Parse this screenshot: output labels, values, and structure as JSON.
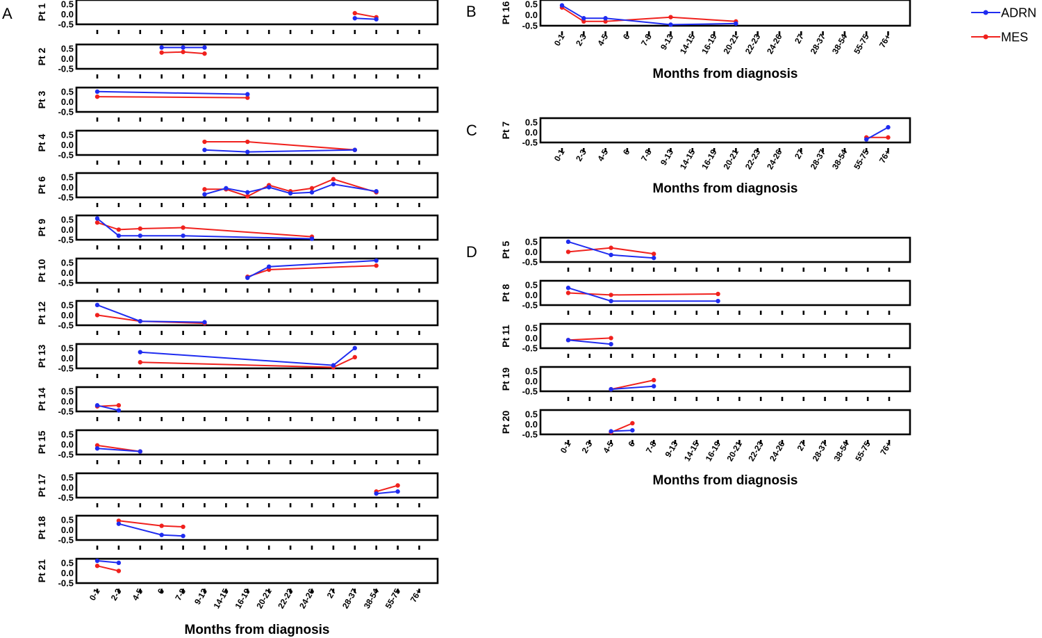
{
  "chart_data": {
    "type": "line",
    "x_categories": [
      "0-1",
      "2-3",
      "4-5",
      "6",
      "7-8",
      "9-13",
      "14-15",
      "16-19",
      "20-21",
      "22-23",
      "24-26",
      "27",
      "28-37",
      "38-54",
      "55-75",
      "76+"
    ],
    "y_ticks": [
      "0.5",
      "0.0",
      "-0.5"
    ],
    "ylim": [
      -0.5,
      0.7
    ],
    "xlabel": "Months from diagnosis",
    "legend": [
      {
        "key": "ADRN",
        "label": "ADRN",
        "color": "#1f2cf0"
      },
      {
        "key": "MES",
        "label": "MES",
        "color": "#f0211d"
      }
    ],
    "panels": [
      {
        "letter": "A",
        "xlabel": "Months from diagnosis",
        "subplots": [
          {
            "label": "Pt 1",
            "ADRN": [
              [
                12,
                -0.2
              ],
              [
                13,
                -0.25
              ]
            ],
            "MES": [
              [
                12,
                0.05
              ],
              [
                13,
                -0.15
              ]
            ]
          },
          {
            "label": "Pt 2",
            "ADRN": [
              [
                3,
                0.55
              ],
              [
                4,
                0.55
              ],
              [
                5,
                0.55
              ]
            ],
            "MES": [
              [
                3,
                0.3
              ],
              [
                4,
                0.33
              ],
              [
                5,
                0.25
              ]
            ]
          },
          {
            "label": "Pt 3",
            "ADRN": [
              [
                0,
                0.5
              ],
              [
                7,
                0.37
              ]
            ],
            "MES": [
              [
                0,
                0.25
              ],
              [
                7,
                0.2
              ]
            ]
          },
          {
            "label": "Pt 4",
            "ADRN": [
              [
                5,
                -0.25
              ],
              [
                7,
                -0.35
              ],
              [
                12,
                -0.25
              ]
            ],
            "MES": [
              [
                5,
                0.15
              ],
              [
                7,
                0.15
              ],
              [
                12,
                -0.25
              ]
            ]
          },
          {
            "label": "Pt 6",
            "ADRN": [
              [
                5,
                -0.35
              ],
              [
                6,
                -0.05
              ],
              [
                7,
                -0.25
              ],
              [
                8,
                0.0
              ],
              [
                9,
                -0.3
              ],
              [
                10,
                -0.25
              ],
              [
                11,
                0.15
              ],
              [
                13,
                -0.2
              ]
            ],
            "MES": [
              [
                5,
                -0.1
              ],
              [
                6,
                -0.1
              ],
              [
                7,
                -0.45
              ],
              [
                8,
                0.1
              ],
              [
                9,
                -0.2
              ],
              [
                10,
                -0.05
              ],
              [
                11,
                0.4
              ],
              [
                13,
                -0.25
              ]
            ]
          },
          {
            "label": "Pt 9",
            "ADRN": [
              [
                0,
                0.55
              ],
              [
                1,
                -0.3
              ],
              [
                2,
                -0.3
              ],
              [
                4,
                -0.3
              ],
              [
                10,
                -0.45
              ]
            ],
            "MES": [
              [
                0,
                0.35
              ],
              [
                1,
                0.0
              ],
              [
                2,
                0.05
              ],
              [
                4,
                0.1
              ],
              [
                10,
                -0.35
              ]
            ]
          },
          {
            "label": "Pt 10",
            "ADRN": [
              [
                7,
                -0.25
              ],
              [
                8,
                0.3
              ],
              [
                13,
                0.6
              ]
            ],
            "MES": [
              [
                7,
                -0.2
              ],
              [
                8,
                0.15
              ],
              [
                13,
                0.35
              ]
            ]
          },
          {
            "label": "Pt 12",
            "ADRN": [
              [
                0,
                0.5
              ],
              [
                2,
                -0.3
              ],
              [
                5,
                -0.35
              ]
            ],
            "MES": [
              [
                0,
                0.0
              ],
              [
                2,
                -0.3
              ],
              [
                5,
                -0.4
              ]
            ]
          },
          {
            "label": "Pt 13",
            "ADRN": [
              [
                2,
                0.3
              ],
              [
                11,
                -0.35
              ],
              [
                12,
                0.5
              ]
            ],
            "MES": [
              [
                2,
                -0.2
              ],
              [
                11,
                -0.45
              ],
              [
                12,
                0.05
              ]
            ]
          },
          {
            "label": "Pt 14",
            "ADRN": [
              [
                0,
                -0.2
              ],
              [
                1,
                -0.45
              ]
            ],
            "MES": [
              [
                0,
                -0.25
              ],
              [
                1,
                -0.2
              ]
            ]
          },
          {
            "label": "Pt 15",
            "ADRN": [
              [
                0,
                -0.2
              ],
              [
                2,
                -0.35
              ]
            ],
            "MES": [
              [
                0,
                -0.05
              ],
              [
                2,
                -0.35
              ]
            ]
          },
          {
            "label": "Pt 17",
            "ADRN": [
              [
                13,
                -0.3
              ],
              [
                14,
                -0.2
              ]
            ],
            "MES": [
              [
                13,
                -0.2
              ],
              [
                14,
                0.1
              ]
            ]
          },
          {
            "label": "Pt 18",
            "ADRN": [
              [
                1,
                0.3
              ],
              [
                3,
                -0.25
              ],
              [
                4,
                -0.3
              ]
            ],
            "MES": [
              [
                1,
                0.45
              ],
              [
                3,
                0.2
              ],
              [
                4,
                0.15
              ]
            ]
          },
          {
            "label": "Pt 21",
            "ADRN": [
              [
                0,
                0.6
              ],
              [
                1,
                0.5
              ]
            ],
            "MES": [
              [
                0,
                0.35
              ],
              [
                1,
                0.1
              ]
            ]
          }
        ]
      },
      {
        "letter": "B",
        "xlabel": "Months from diagnosis",
        "subplots": [
          {
            "label": "Pt 16",
            "ADRN": [
              [
                0,
                0.45
              ],
              [
                1,
                -0.15
              ],
              [
                2,
                -0.15
              ],
              [
                5,
                -0.45
              ],
              [
                8,
                -0.4
              ]
            ],
            "MES": [
              [
                0,
                0.35
              ],
              [
                1,
                -0.3
              ],
              [
                2,
                -0.3
              ],
              [
                5,
                -0.1
              ],
              [
                8,
                -0.3
              ]
            ]
          }
        ]
      },
      {
        "letter": "C",
        "xlabel": "Months from diagnosis",
        "subplots": [
          {
            "label": "Pt 7",
            "ADRN": [
              [
                14,
                -0.35
              ],
              [
                15,
                0.25
              ]
            ],
            "MES": [
              [
                14,
                -0.25
              ],
              [
                15,
                -0.25
              ]
            ]
          }
        ]
      },
      {
        "letter": "D",
        "xlabel": "Months from diagnosis",
        "subplots": [
          {
            "label": "Pt 5",
            "ADRN": [
              [
                0,
                0.5
              ],
              [
                2,
                -0.15
              ],
              [
                4,
                -0.3
              ]
            ],
            "MES": [
              [
                0,
                0.0
              ],
              [
                2,
                0.2
              ],
              [
                4,
                -0.1
              ]
            ]
          },
          {
            "label": "Pt 8",
            "ADRN": [
              [
                0,
                0.35
              ],
              [
                2,
                -0.3
              ],
              [
                7,
                -0.3
              ]
            ],
            "MES": [
              [
                0,
                0.1
              ],
              [
                2,
                0.0
              ],
              [
                7,
                0.05
              ]
            ]
          },
          {
            "label": "Pt 11",
            "ADRN": [
              [
                0,
                -0.1
              ],
              [
                2,
                -0.3
              ]
            ],
            "MES": [
              [
                0,
                -0.1
              ],
              [
                2,
                0.0
              ]
            ]
          },
          {
            "label": "Pt 19",
            "ADRN": [
              [
                2,
                -0.4
              ],
              [
                4,
                -0.25
              ]
            ],
            "MES": [
              [
                2,
                -0.4
              ],
              [
                4,
                0.05
              ]
            ]
          },
          {
            "label": "Pt 20",
            "ADRN": [
              [
                2,
                -0.35
              ],
              [
                3,
                -0.3
              ]
            ],
            "MES": [
              [
                2,
                -0.4
              ],
              [
                3,
                0.05
              ]
            ]
          }
        ]
      }
    ]
  }
}
